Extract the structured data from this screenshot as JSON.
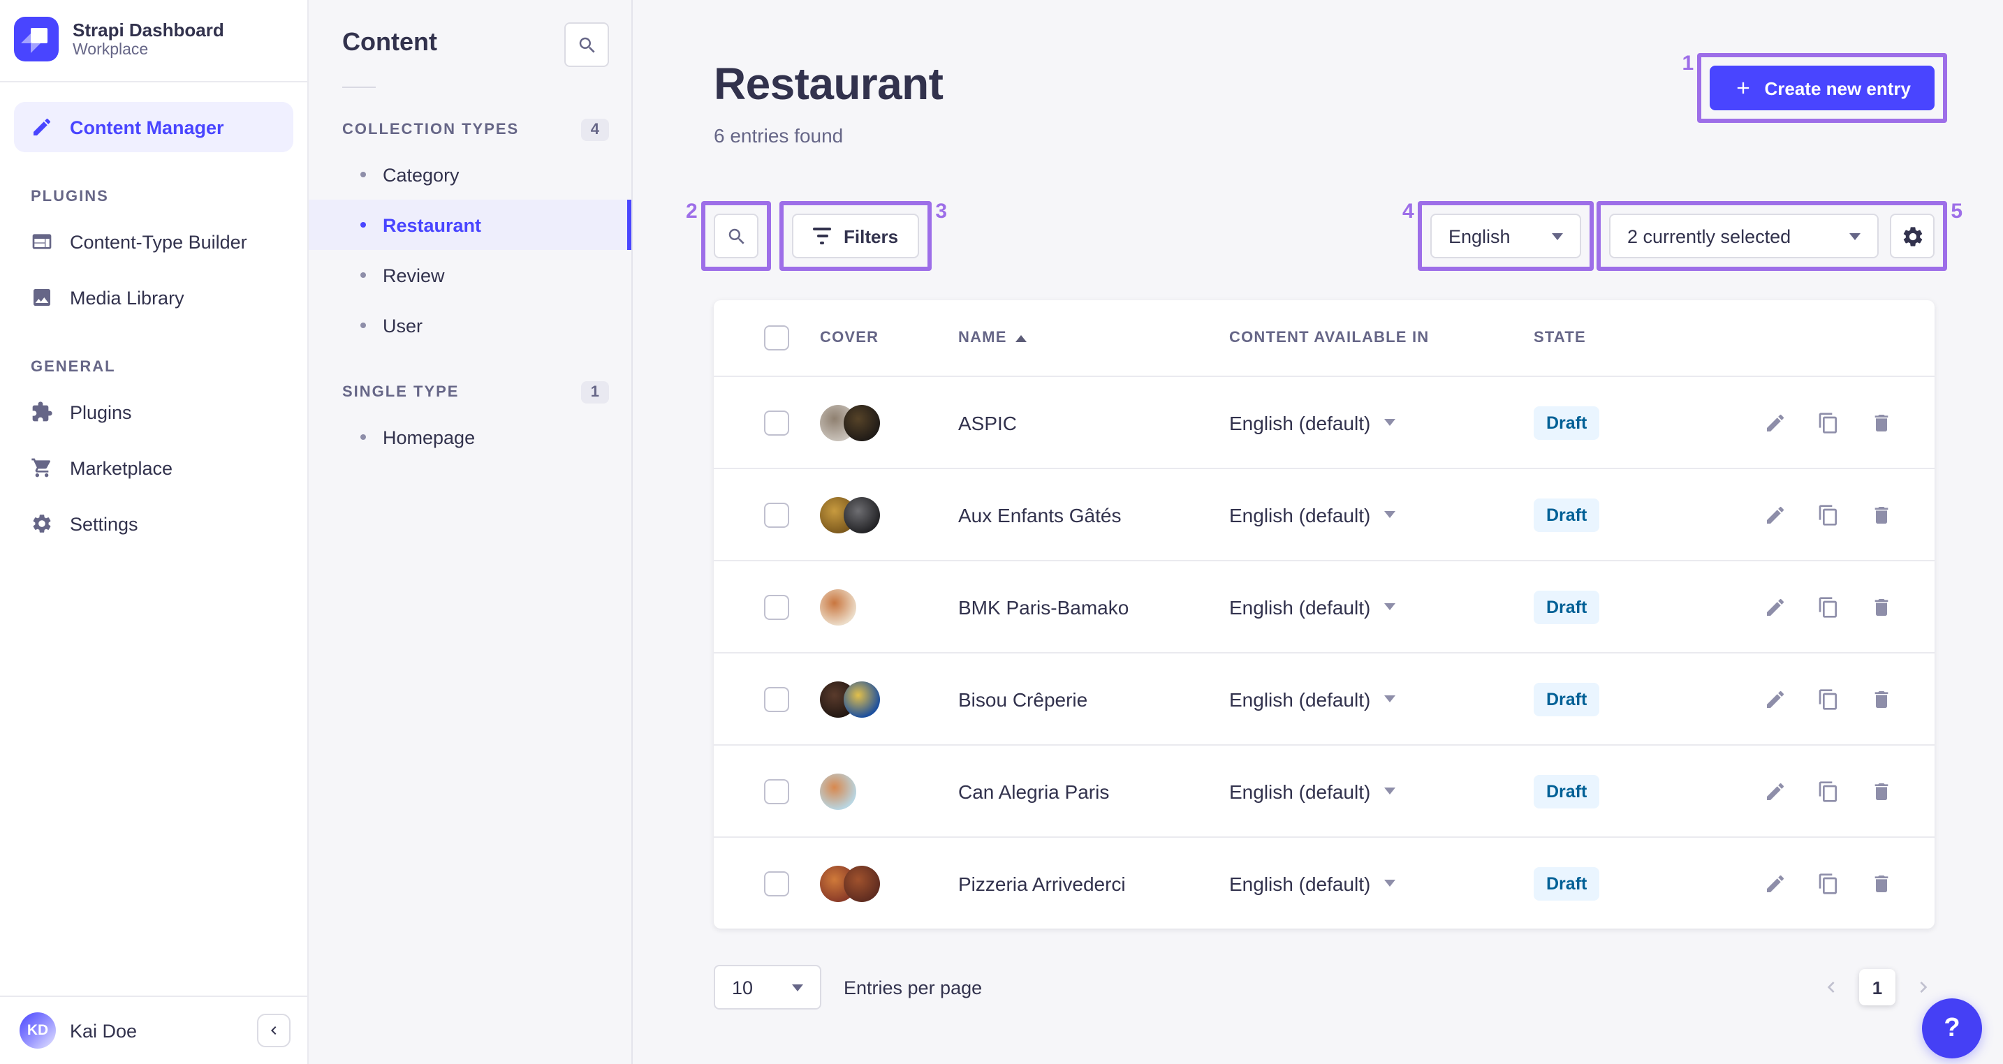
{
  "brand": {
    "title": "Strapi Dashboard",
    "subtitle": "Workplace"
  },
  "nav": {
    "content_manager": "Content Manager",
    "sections": [
      {
        "label": "PLUGINS",
        "items": [
          {
            "label": "Content-Type Builder",
            "icon": "layout-icon"
          },
          {
            "label": "Media Library",
            "icon": "media-icon"
          }
        ]
      },
      {
        "label": "GENERAL",
        "items": [
          {
            "label": "Plugins",
            "icon": "puzzle-icon"
          },
          {
            "label": "Marketplace",
            "icon": "cart-icon"
          },
          {
            "label": "Settings",
            "icon": "gear-icon"
          }
        ]
      }
    ],
    "user": {
      "initials": "KD",
      "name": "Kai Doe"
    }
  },
  "subnav": {
    "title": "Content",
    "groups": [
      {
        "label": "COLLECTION TYPES",
        "count": "4",
        "items": [
          {
            "label": "Category",
            "active": false
          },
          {
            "label": "Restaurant",
            "active": true
          },
          {
            "label": "Review",
            "active": false
          },
          {
            "label": "User",
            "active": false
          }
        ]
      },
      {
        "label": "SINGLE TYPE",
        "count": "1",
        "items": [
          {
            "label": "Homepage",
            "active": false
          }
        ]
      }
    ]
  },
  "main": {
    "title": "Restaurant",
    "subtitle": "6 entries found",
    "create_button": "Create new entry",
    "filters_button": "Filters",
    "locale_select": "English",
    "fields_select": "2 currently selected",
    "help_label": "?",
    "table": {
      "headers": [
        "COVER",
        "NAME",
        "CONTENT AVAILABLE IN",
        "STATE"
      ],
      "rows": [
        {
          "name": "ASPIC",
          "locale": "English (default)",
          "state": "Draft",
          "covers": [
            {
              "inner": "#8f8070",
              "outer": "#c9c2ba"
            },
            {
              "inner": "#564328",
              "outer": "#201b17"
            }
          ]
        },
        {
          "name": "Aux Enfants Gâtés",
          "locale": "English (default)",
          "state": "Draft",
          "covers": [
            {
              "inner": "#c79a3f",
              "outer": "#7d5a1e"
            },
            {
              "inner": "#6e6e72",
              "outer": "#232326"
            }
          ]
        },
        {
          "name": "BMK Paris-Bamako",
          "locale": "English (default)",
          "state": "Draft",
          "covers": [
            {
              "inner": "#c9763f",
              "outer": "#ecdcc8"
            }
          ]
        },
        {
          "name": "Bisou Crêperie",
          "locale": "English (default)",
          "state": "Draft",
          "covers": [
            {
              "inner": "#5a3b2c",
              "outer": "#241813"
            },
            {
              "inner": "#e3c04a",
              "outer": "#1c4f9e"
            }
          ]
        },
        {
          "name": "Can Alegria Paris",
          "locale": "English (default)",
          "state": "Draft",
          "covers": [
            {
              "inner": "#d8884e",
              "outer": "#b9d6e2"
            }
          ]
        },
        {
          "name": "Pizzeria Arrivederci",
          "locale": "English (default)",
          "state": "Draft",
          "covers": [
            {
              "inner": "#d07a3a",
              "outer": "#8a3b28"
            },
            {
              "inner": "#a0522d",
              "outer": "#5f2c20"
            }
          ]
        }
      ]
    },
    "pagination": {
      "page_size": "10",
      "label": "Entries per page",
      "page": "1"
    }
  },
  "annotations": [
    "1",
    "2",
    "3",
    "4",
    "5"
  ],
  "colors": {
    "primary": "#4945ff",
    "annotation": "#9d6ee8",
    "draft_badge_bg": "#eaf5ff",
    "draft_badge_text": "#006096"
  }
}
